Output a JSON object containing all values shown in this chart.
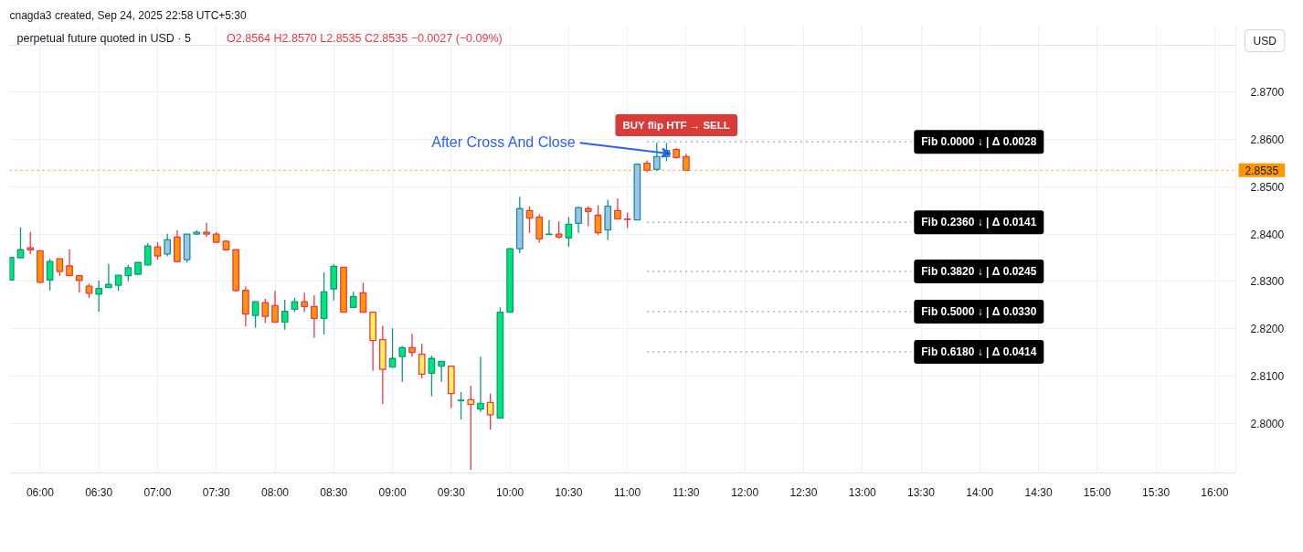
{
  "chart_data": {
    "type": "candlestick",
    "title": "cnagda3 created, Sep 24, 2025 22:58 UTC+5:30",
    "subtitle": "perpetual future quoted in USD · 5",
    "ylabel": "USD",
    "annotations": [
      "O2.8564 H2.8570 L2.8535 C2.8535 −0.0027 (−0.09%)",
      {
        "text": "After Cross And Close",
        "x": 11.3333,
        "y": 2.857
      },
      {
        "text": "BUY flip HTF → SELL",
        "x": 11.4167,
        "y": 2.8582
      }
    ],
    "xlim": [
      5.74,
      16.18
    ],
    "xticks": [
      {
        "value": 6,
        "label": "06:00"
      },
      {
        "value": 6.5,
        "label": "06:30"
      },
      {
        "value": 7,
        "label": "07:00"
      },
      {
        "value": 7.5,
        "label": "07:30"
      },
      {
        "value": 8,
        "label": "08:00"
      },
      {
        "value": 8.5,
        "label": "08:30"
      },
      {
        "value": 9,
        "label": "09:00"
      },
      {
        "value": 9.5,
        "label": "09:30"
      },
      {
        "value": 10,
        "label": "10:00"
      },
      {
        "value": 10.5,
        "label": "10:30"
      },
      {
        "value": 11,
        "label": "11:00"
      },
      {
        "value": 11.5,
        "label": "11:30"
      },
      {
        "value": 12,
        "label": "12:00"
      },
      {
        "value": 12.5,
        "label": "12:30"
      },
      {
        "value": 13,
        "label": "13:00"
      },
      {
        "value": 13.5,
        "label": "13:30"
      },
      {
        "value": 14,
        "label": "14:00"
      },
      {
        "value": 14.5,
        "label": "14:30"
      },
      {
        "value": 15,
        "label": "15:00"
      },
      {
        "value": 15.5,
        "label": "15:30"
      },
      {
        "value": 16,
        "label": "16:00"
      }
    ],
    "ylim": [
      2.7895,
      2.884
    ],
    "yticks": [
      {
        "value": 2.8,
        "label": "2.8000"
      },
      {
        "value": 2.81,
        "label": "2.8100"
      },
      {
        "value": 2.82,
        "label": "2.8200"
      },
      {
        "value": 2.83,
        "label": "2.8300"
      },
      {
        "value": 2.84,
        "label": "2.8400"
      },
      {
        "value": 2.85,
        "label": "2.8500"
      },
      {
        "value": 2.86,
        "label": "2.8600"
      },
      {
        "value": 2.87,
        "label": "2.8700"
      }
    ],
    "grid": true,
    "ref_lines": [
      {
        "axis": "y",
        "value": 2.8535,
        "label": "2.8535",
        "color": "#ff9800",
        "line_style": "dotted"
      }
    ],
    "series": [
      {
        "type": "line",
        "name": "Fib 0.0000 ↓ | Δ 0.0028",
        "color": "#b2b5be",
        "line_style": "dotted",
        "x": [
          11.1667,
          13.4167
        ],
        "values": [
          2.8595,
          2.8595
        ]
      },
      {
        "type": "line",
        "name": "Fib 0.2360 ↓ | Δ 0.0141",
        "color": "#b2b5be",
        "line_style": "dotted",
        "x": [
          11.1667,
          13.4167
        ],
        "values": [
          2.8425,
          2.8425
        ]
      },
      {
        "type": "line",
        "name": "Fib 0.3820 ↓ | Δ 0.0245",
        "color": "#b2b5be",
        "line_style": "dotted",
        "x": [
          11.1667,
          13.4167
        ],
        "values": [
          2.8321,
          2.8321
        ]
      },
      {
        "type": "line",
        "name": "Fib 0.5000 ↓ | Δ 0.0330",
        "color": "#b2b5be",
        "line_style": "dotted",
        "x": [
          11.1667,
          13.4167
        ],
        "values": [
          2.8236,
          2.8236
        ]
      },
      {
        "type": "line",
        "name": "Fib 0.6180 ↓ | Δ 0.0414",
        "color": "#b2b5be",
        "line_style": "dotted",
        "x": [
          11.1667,
          13.4167
        ],
        "values": [
          2.8151,
          2.8151
        ]
      },
      {
        "color": "#089981",
        "x": [
          5.75,
          5.8333,
          6.0833,
          6.5,
          6.5833,
          6.6667,
          6.75,
          6.8333,
          6.9167,
          7.0833,
          7.25,
          7.3333,
          7.8333,
          8.0833,
          8.1667,
          8.4167,
          8.5,
          8.6667,
          9,
          9.0833,
          9.3333,
          9.4167,
          9.5833,
          9.75,
          9.9167,
          10,
          10.0833,
          10.3333,
          10.5,
          10.5833,
          10.8333,
          11.0833,
          11.25,
          11.3333
        ],
        "ohlc": [
          [
            2.8303,
            2.8352,
            2.8303,
            2.8351
          ],
          [
            2.835,
            2.8414,
            2.835,
            2.8367
          ],
          [
            2.8303,
            2.8347,
            2.8281,
            2.8342
          ],
          [
            2.8273,
            2.8302,
            2.8236,
            2.8285
          ],
          [
            2.8287,
            2.8337,
            2.8287,
            2.8294
          ],
          [
            2.8292,
            2.8313,
            2.828,
            2.8313
          ],
          [
            2.8312,
            2.8335,
            2.8301,
            2.8329
          ],
          [
            2.8315,
            2.834,
            2.8315,
            2.834
          ],
          [
            2.8335,
            2.8381,
            2.8335,
            2.8375
          ],
          [
            2.8358,
            2.8401,
            2.8353,
            2.8388
          ],
          [
            2.8346,
            2.84,
            2.834,
            2.84
          ],
          [
            2.84,
            2.8408,
            2.8398,
            2.8404
          ],
          [
            2.8228,
            2.8257,
            2.8202,
            2.8257
          ],
          [
            2.8214,
            2.8261,
            2.8198,
            2.8237
          ],
          [
            2.8241,
            2.8265,
            2.8235,
            2.8257
          ],
          [
            2.8222,
            2.8319,
            2.8188,
            2.8278
          ],
          [
            2.8284,
            2.8336,
            2.826,
            2.8332
          ],
          [
            2.8245,
            2.8278,
            2.8245,
            2.8268
          ],
          [
            2.8119,
            2.8201,
            2.8119,
            2.8137
          ],
          [
            2.8141,
            2.8163,
            2.8088,
            2.816
          ],
          [
            2.8106,
            2.8143,
            2.8057,
            2.8137
          ],
          [
            2.8121,
            2.8131,
            2.8088,
            2.8131
          ],
          [
            2.8048,
            2.8066,
            2.8008,
            2.8049
          ],
          [
            2.803,
            2.8141,
            2.8024,
            2.8042
          ],
          [
            2.8011,
            2.8245,
            2.8011,
            2.8235
          ],
          [
            2.8235,
            2.8371,
            2.8235,
            2.8369
          ],
          [
            2.8369,
            2.8479,
            2.836,
            2.8454
          ],
          [
            2.8399,
            2.843,
            2.8399,
            2.84
          ],
          [
            2.8392,
            2.8436,
            2.8373,
            2.8421
          ],
          [
            2.8423,
            2.8458,
            2.8403,
            2.8456
          ],
          [
            2.8409,
            2.8473,
            2.8388,
            2.8459
          ],
          [
            2.843,
            2.8548,
            2.843,
            2.8548
          ],
          [
            2.8537,
            2.8593,
            2.8533,
            2.8564
          ],
          [
            2.8564,
            2.8593,
            2.8554,
            2.8577
          ]
        ],
        "colors": [
          "#00e676",
          "#00e676",
          "#00e676",
          "#00e676",
          "#00e676",
          "#00e676",
          "#00e676",
          "#00e676",
          "#00e676",
          "#9fc0f2",
          "#9fc0f2",
          "#9fc0f2",
          "#00e676",
          "#00e676",
          "#00e676",
          "#00e676",
          "#00e676",
          "#00e676",
          "#00e676",
          "#00e676",
          "#00e676",
          "#00e676",
          "#00e676",
          "#00e676",
          "#00e676",
          "#00e676",
          "#9fc0f2",
          "#00e676",
          "#00e676",
          "#9fc0f2",
          "#9fc0f2",
          "#9fc0f2",
          "#9fc0f2",
          "#9fc0f2"
        ]
      },
      {
        "color": "#f23645",
        "x": [
          5.9167,
          6,
          6.1667,
          6.25,
          6.3333,
          6.4167,
          7,
          7.1667,
          7.4167,
          7.5,
          7.5833,
          7.6667,
          7.75,
          7.9167,
          8,
          8.25,
          8.3333,
          8.5833,
          8.75,
          8.8333,
          8.9167,
          9.1667,
          9.25,
          9.5,
          9.6667,
          9.8333,
          10.1667,
          10.25,
          10.4167,
          10.6667,
          10.75,
          10.9167,
          11,
          11.1667,
          11.4167,
          11.5
        ],
        "ohlc": [
          [
            2.8371,
            2.8404,
            2.8358,
            2.8367
          ],
          [
            2.8365,
            2.8365,
            2.8296,
            2.8298
          ],
          [
            2.8348,
            2.8348,
            2.8312,
            2.8321
          ],
          [
            2.8333,
            2.8368,
            2.8312,
            2.8312
          ],
          [
            2.8312,
            2.8312,
            2.8276,
            2.8302
          ],
          [
            2.829,
            2.8295,
            2.8265,
            2.8275
          ],
          [
            2.8373,
            2.8383,
            2.8346,
            2.8354
          ],
          [
            2.8394,
            2.8408,
            2.834,
            2.8342
          ],
          [
            2.8404,
            2.8424,
            2.8394,
            2.84
          ],
          [
            2.84,
            2.8404,
            2.8383,
            2.8383
          ],
          [
            2.8385,
            2.8387,
            2.8367,
            2.8367
          ],
          [
            2.8367,
            2.8367,
            2.8278,
            2.8281
          ],
          [
            2.8281,
            2.8289,
            2.8205,
            2.8231
          ],
          [
            2.8255,
            2.8263,
            2.8212,
            2.8226
          ],
          [
            2.8249,
            2.828,
            2.8212,
            2.8214
          ],
          [
            2.8257,
            2.8276,
            2.8235,
            2.8247
          ],
          [
            2.8247,
            2.8271,
            2.8181,
            2.8222
          ],
          [
            2.833,
            2.833,
            2.8235,
            2.8235
          ],
          [
            2.8276,
            2.8297,
            2.8235,
            2.8235
          ],
          [
            2.8235,
            2.8235,
            2.8111,
            2.8175
          ],
          [
            2.8177,
            2.8206,
            2.8041,
            2.8114
          ],
          [
            2.816,
            2.8189,
            2.8141,
            2.815
          ],
          [
            2.8146,
            2.8168,
            2.8095,
            2.8104
          ],
          [
            2.8121,
            2.8121,
            2.8032,
            2.8063
          ],
          [
            2.805,
            2.8079,
            2.7902,
            2.804
          ],
          [
            2.8044,
            2.8063,
            2.7987,
            2.8018
          ],
          [
            2.845,
            2.8459,
            2.8403,
            2.8434
          ],
          [
            2.8436,
            2.8442,
            2.8382,
            2.839
          ],
          [
            2.84,
            2.8427,
            2.839,
            2.8394
          ],
          [
            2.8454,
            2.8459,
            2.8417,
            2.8448
          ],
          [
            2.844,
            2.8461,
            2.8398,
            2.8403
          ],
          [
            2.845,
            2.8475,
            2.8432,
            2.8432
          ],
          [
            2.8432,
            2.8446,
            2.8413,
            2.8431
          ],
          [
            2.855,
            2.8556,
            2.8531,
            2.8535
          ],
          [
            2.8579,
            2.8582,
            2.856,
            2.8562
          ],
          [
            2.8564,
            2.857,
            2.8535,
            2.8535
          ]
        ],
        "colors": [
          "#ff9800",
          "#ff9800",
          "#ff9800",
          "#ff9800",
          "#ff9800",
          "#ff9800",
          "#ff9800",
          "#ff9800",
          "#ff9800",
          "#ff9800",
          "#ff9800",
          "#ff9800",
          "#ff9800",
          "#ff9800",
          "#ff9800",
          "#ff9800",
          "#ff9800",
          "#ff9800",
          "#ff9800",
          "#f6f354",
          "#f6f354",
          "#ff9800",
          "#f6f354",
          "#f6f354",
          "#f6f354",
          "#f6f354",
          "#ff9800",
          "#ff9800",
          "#ff9800",
          "#ff9800",
          "#ff9800",
          "#ff9800",
          "#ff9800",
          "#ff9800",
          "#ff9800",
          "#ff9800"
        ]
      }
    ]
  }
}
